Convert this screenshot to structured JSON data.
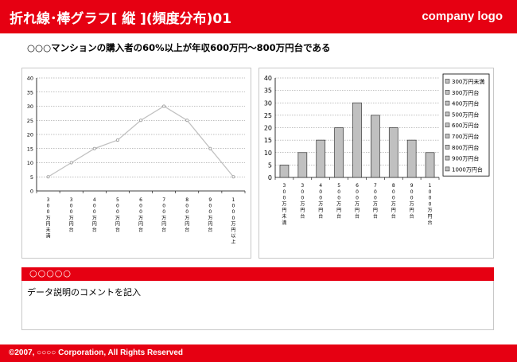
{
  "header": {
    "title": "折れ線･棒グラフ[ 縦 ](頻度分布)01",
    "logo": "company logo"
  },
  "subtitle": "○○○マンションの購入者の60%以上が年収600万円～800万円台である",
  "note": {
    "title": "○○○○○",
    "text": "データ説明のコメントを記入"
  },
  "footer": {
    "copyright": "©2007, ○○○○ Corporation, All Rights Reserved"
  },
  "colors": {
    "accent": "#e60012",
    "line": "#c0c0c0",
    "bar_fill": "#c0c0c0",
    "bar_stroke": "#333333",
    "grid": "#808080"
  },
  "chart_data": [
    {
      "type": "line",
      "categories": [
        "300万円未満",
        "300万円台",
        "400万円台",
        "500万円台",
        "600万円台",
        "700万円台",
        "800万円台",
        "900万円台",
        "1000万円以上"
      ],
      "values": [
        5,
        10,
        15,
        18,
        25,
        30,
        25,
        15,
        5
      ],
      "ylim": [
        0,
        40
      ],
      "yticks": [
        0,
        5,
        10,
        15,
        20,
        25,
        30,
        35,
        40
      ],
      "grid": true,
      "legend": "none"
    },
    {
      "type": "bar",
      "categories": [
        "300万円未満",
        "300万円台",
        "400万円台",
        "500万円台",
        "600万円台",
        "700万円台",
        "800万円台",
        "900万円台",
        "1000万円台"
      ],
      "values": [
        5,
        10,
        15,
        20,
        30,
        25,
        20,
        15,
        10
      ],
      "legend_entries": [
        "300万円未満",
        "300万円台",
        "400万円台",
        "500万円台",
        "600万円台",
        "700万円台",
        "800万円台",
        "900万円台",
        "1000万円台"
      ],
      "ylim": [
        0,
        40
      ],
      "yticks": [
        0,
        5,
        10,
        15,
        20,
        25,
        30,
        35,
        40
      ],
      "grid": true,
      "legend": "right"
    }
  ]
}
